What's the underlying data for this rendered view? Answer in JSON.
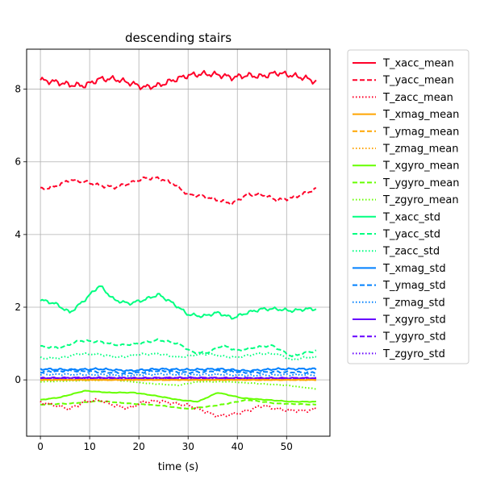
{
  "chart_data": {
    "type": "line",
    "title": "descending stairs",
    "xlabel": "time (s)",
    "ylabel": "",
    "xlim": [
      -2.8,
      58.8
    ],
    "ylim": [
      -1.55,
      9.1
    ],
    "x_ticks": [
      0,
      10,
      20,
      30,
      40,
      50
    ],
    "y_ticks": [
      0,
      2,
      4,
      6,
      8
    ],
    "x_tick_labels": [
      "0",
      "10",
      "20",
      "30",
      "40",
      "50"
    ],
    "y_tick_labels": [
      "0",
      "2",
      "4",
      "6",
      "8"
    ],
    "grid": true,
    "legend_position": "outside-right",
    "x_range": [
      0,
      56
    ],
    "series": [
      {
        "name": "T_xacc_mean",
        "color": "#ff0029",
        "dash": "solid",
        "noise": 0.09,
        "points": [
          [
            0,
            8.25
          ],
          [
            3,
            8.2
          ],
          [
            6,
            8.12
          ],
          [
            9,
            8.1
          ],
          [
            12,
            8.28
          ],
          [
            15,
            8.28
          ],
          [
            18,
            8.18
          ],
          [
            21,
            8.05
          ],
          [
            24,
            8.1
          ],
          [
            27,
            8.25
          ],
          [
            30,
            8.38
          ],
          [
            33,
            8.42
          ],
          [
            36,
            8.4
          ],
          [
            39,
            8.32
          ],
          [
            42,
            8.38
          ],
          [
            45,
            8.35
          ],
          [
            48,
            8.45
          ],
          [
            51,
            8.38
          ],
          [
            54,
            8.3
          ],
          [
            56,
            8.2
          ]
        ]
      },
      {
        "name": "T_yacc_mean",
        "color": "#ff0029",
        "dash": "dashed",
        "noise": 0.05,
        "points": [
          [
            0,
            5.25
          ],
          [
            3,
            5.32
          ],
          [
            6,
            5.5
          ],
          [
            9,
            5.45
          ],
          [
            12,
            5.35
          ],
          [
            15,
            5.3
          ],
          [
            18,
            5.4
          ],
          [
            21,
            5.55
          ],
          [
            24,
            5.55
          ],
          [
            27,
            5.4
          ],
          [
            30,
            5.1
          ],
          [
            33,
            5.05
          ],
          [
            36,
            4.95
          ],
          [
            39,
            4.85
          ],
          [
            42,
            5.1
          ],
          [
            45,
            5.1
          ],
          [
            48,
            4.95
          ],
          [
            51,
            5.0
          ],
          [
            54,
            5.15
          ],
          [
            56,
            5.25
          ]
        ]
      },
      {
        "name": "T_zacc_mean",
        "color": "#ff0029",
        "dash": "dotted",
        "noise": 0.05,
        "points": [
          [
            0,
            -0.62
          ],
          [
            3,
            -0.7
          ],
          [
            6,
            -0.8
          ],
          [
            9,
            -0.6
          ],
          [
            12,
            -0.55
          ],
          [
            15,
            -0.7
          ],
          [
            18,
            -0.78
          ],
          [
            21,
            -0.6
          ],
          [
            24,
            -0.58
          ],
          [
            27,
            -0.65
          ],
          [
            30,
            -0.7
          ],
          [
            33,
            -0.85
          ],
          [
            36,
            -1.0
          ],
          [
            39,
            -0.95
          ],
          [
            42,
            -0.85
          ],
          [
            45,
            -0.7
          ],
          [
            48,
            -0.8
          ],
          [
            51,
            -0.85
          ],
          [
            54,
            -0.85
          ],
          [
            56,
            -0.8
          ]
        ]
      },
      {
        "name": "T_xmag_mean",
        "color": "#ffa500",
        "dash": "solid",
        "noise": 0.01,
        "points": [
          [
            0,
            0.0
          ],
          [
            10,
            0.0
          ],
          [
            20,
            0.0
          ],
          [
            30,
            0.0
          ],
          [
            40,
            0.0
          ],
          [
            56,
            0.0
          ]
        ]
      },
      {
        "name": "T_ymag_mean",
        "color": "#ffa500",
        "dash": "dashed",
        "noise": 0.01,
        "points": [
          [
            0,
            0.0
          ],
          [
            10,
            0.0
          ],
          [
            20,
            0.0
          ],
          [
            30,
            0.0
          ],
          [
            40,
            0.0
          ],
          [
            56,
            0.0
          ]
        ]
      },
      {
        "name": "T_zmag_mean",
        "color": "#ffa500",
        "dash": "dotted",
        "noise": 0.01,
        "points": [
          [
            0,
            0.0
          ],
          [
            10,
            0.0
          ],
          [
            20,
            0.0
          ],
          [
            30,
            0.0
          ],
          [
            40,
            0.0
          ],
          [
            56,
            0.0
          ]
        ]
      },
      {
        "name": "T_xgyro_mean",
        "color": "#66ff00",
        "dash": "solid",
        "noise": 0.01,
        "points": [
          [
            0,
            -0.55
          ],
          [
            4,
            -0.48
          ],
          [
            9,
            -0.3
          ],
          [
            14,
            -0.35
          ],
          [
            19,
            -0.35
          ],
          [
            24,
            -0.45
          ],
          [
            28,
            -0.55
          ],
          [
            32,
            -0.6
          ],
          [
            36,
            -0.35
          ],
          [
            41,
            -0.5
          ],
          [
            46,
            -0.55
          ],
          [
            51,
            -0.6
          ],
          [
            56,
            -0.6
          ]
        ]
      },
      {
        "name": "T_ygyro_mean",
        "color": "#66ff00",
        "dash": "dashed",
        "noise": 0.01,
        "points": [
          [
            0,
            -0.68
          ],
          [
            6,
            -0.65
          ],
          [
            12,
            -0.58
          ],
          [
            18,
            -0.65
          ],
          [
            24,
            -0.7
          ],
          [
            30,
            -0.8
          ],
          [
            36,
            -0.7
          ],
          [
            42,
            -0.55
          ],
          [
            48,
            -0.65
          ],
          [
            56,
            -0.68
          ]
        ]
      },
      {
        "name": "T_zgyro_mean",
        "color": "#66ff00",
        "dash": "dotted",
        "noise": 0.01,
        "points": [
          [
            0,
            -0.05
          ],
          [
            8,
            -0.02
          ],
          [
            15,
            0.0
          ],
          [
            22,
            -0.1
          ],
          [
            28,
            -0.15
          ],
          [
            32,
            -0.05
          ],
          [
            38,
            -0.05
          ],
          [
            44,
            -0.1
          ],
          [
            50,
            -0.15
          ],
          [
            56,
            -0.25
          ]
        ]
      },
      {
        "name": "T_xacc_std",
        "color": "#00ff80",
        "dash": "solid",
        "noise": 0.05,
        "points": [
          [
            0,
            2.2
          ],
          [
            3,
            2.1
          ],
          [
            6,
            1.85
          ],
          [
            9,
            2.2
          ],
          [
            12,
            2.6
          ],
          [
            15,
            2.2
          ],
          [
            18,
            2.1
          ],
          [
            21,
            2.2
          ],
          [
            24,
            2.35
          ],
          [
            27,
            2.1
          ],
          [
            30,
            1.8
          ],
          [
            33,
            1.75
          ],
          [
            36,
            1.85
          ],
          [
            39,
            1.7
          ],
          [
            42,
            1.85
          ],
          [
            45,
            1.95
          ],
          [
            48,
            1.95
          ],
          [
            51,
            1.9
          ],
          [
            54,
            1.95
          ],
          [
            56,
            1.95
          ]
        ]
      },
      {
        "name": "T_yacc_std",
        "color": "#00ff80",
        "dash": "dashed",
        "noise": 0.03,
        "points": [
          [
            0,
            0.92
          ],
          [
            4,
            0.88
          ],
          [
            8,
            1.08
          ],
          [
            12,
            1.05
          ],
          [
            16,
            0.95
          ],
          [
            20,
            1.0
          ],
          [
            24,
            1.1
          ],
          [
            28,
            1.0
          ],
          [
            31,
            0.75
          ],
          [
            34,
            0.75
          ],
          [
            37,
            0.95
          ],
          [
            40,
            0.8
          ],
          [
            43,
            0.88
          ],
          [
            47,
            0.95
          ],
          [
            51,
            0.65
          ],
          [
            54,
            0.75
          ],
          [
            56,
            0.8
          ]
        ]
      },
      {
        "name": "T_zacc_std",
        "color": "#00ff80",
        "dash": "dotted",
        "noise": 0.03,
        "points": [
          [
            0,
            0.6
          ],
          [
            4,
            0.6
          ],
          [
            8,
            0.72
          ],
          [
            12,
            0.7
          ],
          [
            16,
            0.62
          ],
          [
            20,
            0.7
          ],
          [
            24,
            0.72
          ],
          [
            28,
            0.62
          ],
          [
            31,
            0.68
          ],
          [
            34,
            0.72
          ],
          [
            37,
            0.65
          ],
          [
            40,
            0.62
          ],
          [
            44,
            0.72
          ],
          [
            48,
            0.72
          ],
          [
            51,
            0.55
          ],
          [
            54,
            0.62
          ],
          [
            56,
            0.62
          ]
        ]
      },
      {
        "name": "T_xmag_std",
        "color": "#0080ff",
        "dash": "solid",
        "noise": 0.03,
        "points": [
          [
            0,
            0.3
          ],
          [
            6,
            0.28
          ],
          [
            12,
            0.3
          ],
          [
            18,
            0.25
          ],
          [
            24,
            0.3
          ],
          [
            30,
            0.28
          ],
          [
            36,
            0.3
          ],
          [
            42,
            0.25
          ],
          [
            48,
            0.3
          ],
          [
            56,
            0.3
          ]
        ]
      },
      {
        "name": "T_ymag_std",
        "color": "#0080ff",
        "dash": "dashed",
        "noise": 0.03,
        "points": [
          [
            0,
            0.22
          ],
          [
            6,
            0.25
          ],
          [
            12,
            0.22
          ],
          [
            18,
            0.18
          ],
          [
            24,
            0.25
          ],
          [
            30,
            0.2
          ],
          [
            36,
            0.25
          ],
          [
            42,
            0.2
          ],
          [
            48,
            0.22
          ],
          [
            56,
            0.2
          ]
        ]
      },
      {
        "name": "T_zmag_std",
        "color": "#0080ff",
        "dash": "dotted",
        "noise": 0.03,
        "points": [
          [
            0,
            0.15
          ],
          [
            6,
            0.15
          ],
          [
            12,
            0.14
          ],
          [
            18,
            0.12
          ],
          [
            24,
            0.16
          ],
          [
            30,
            0.14
          ],
          [
            36,
            0.15
          ],
          [
            42,
            0.12
          ],
          [
            48,
            0.14
          ],
          [
            56,
            0.14
          ]
        ]
      },
      {
        "name": "T_xgyro_std",
        "color": "#6600ff",
        "dash": "solid",
        "noise": 0.02,
        "points": [
          [
            0,
            0.05
          ],
          [
            10,
            0.06
          ],
          [
            20,
            0.05
          ],
          [
            30,
            0.06
          ],
          [
            40,
            0.05
          ],
          [
            56,
            0.05
          ]
        ]
      },
      {
        "name": "T_ygyro_std",
        "color": "#6600ff",
        "dash": "dashed",
        "noise": 0.02,
        "points": [
          [
            0,
            0.04
          ],
          [
            10,
            0.05
          ],
          [
            20,
            0.04
          ],
          [
            30,
            0.05
          ],
          [
            40,
            0.04
          ],
          [
            56,
            0.04
          ]
        ]
      },
      {
        "name": "T_zgyro_std",
        "color": "#6600ff",
        "dash": "dotted",
        "noise": 0.02,
        "points": [
          [
            0,
            0.03
          ],
          [
            10,
            0.04
          ],
          [
            20,
            0.03
          ],
          [
            30,
            0.04
          ],
          [
            40,
            0.03
          ],
          [
            56,
            0.03
          ]
        ]
      }
    ]
  }
}
